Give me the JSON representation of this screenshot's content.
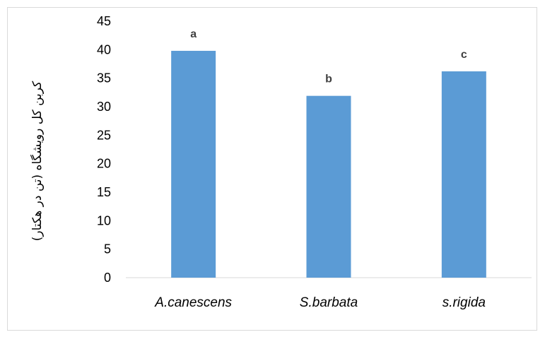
{
  "chart_data": {
    "type": "bar",
    "categories": [
      "A.canescens",
      "S.barbata",
      "s.rigida"
    ],
    "values": [
      39.8,
      31.9,
      36.2
    ],
    "data_labels": [
      "a",
      "b",
      "c"
    ],
    "ylabel": "کربن کل رویشگاه (تن در هکتار)",
    "xlabel": "",
    "ylim": [
      0,
      45
    ],
    "yticks": [
      0,
      5,
      10,
      15,
      20,
      25,
      30,
      35,
      40,
      45
    ],
    "bar_color": "#5B9BD5",
    "grid": false,
    "legend": "none"
  }
}
